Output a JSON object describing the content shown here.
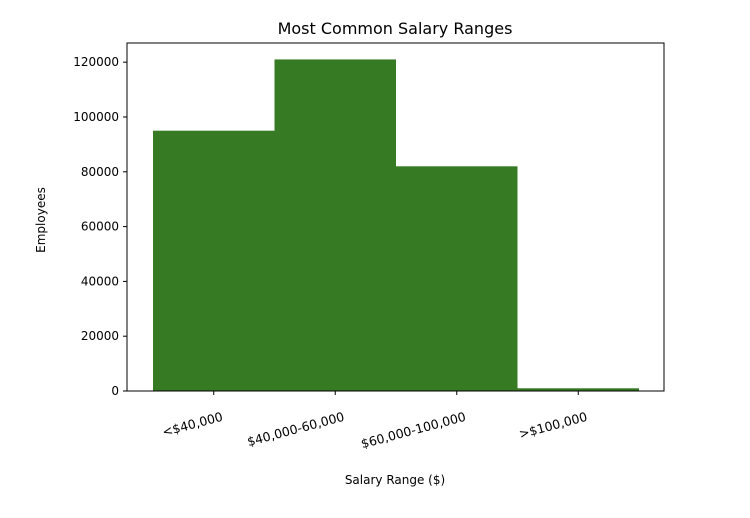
{
  "chart_data": {
    "type": "bar",
    "title": "Most Common Salary Ranges",
    "xlabel": "Salary Range ($)",
    "ylabel": "Employees",
    "categories": [
      "<$40,000",
      "$40,000-60,000",
      "$60,000-100,000",
      ">$100,000"
    ],
    "values": [
      95000,
      121000,
      82000,
      1000
    ],
    "ylim": [
      0,
      127000
    ],
    "yticks": [
      0,
      20000,
      40000,
      60000,
      80000,
      100000,
      120000
    ],
    "bar_color": "#367a24",
    "grid": false
  }
}
